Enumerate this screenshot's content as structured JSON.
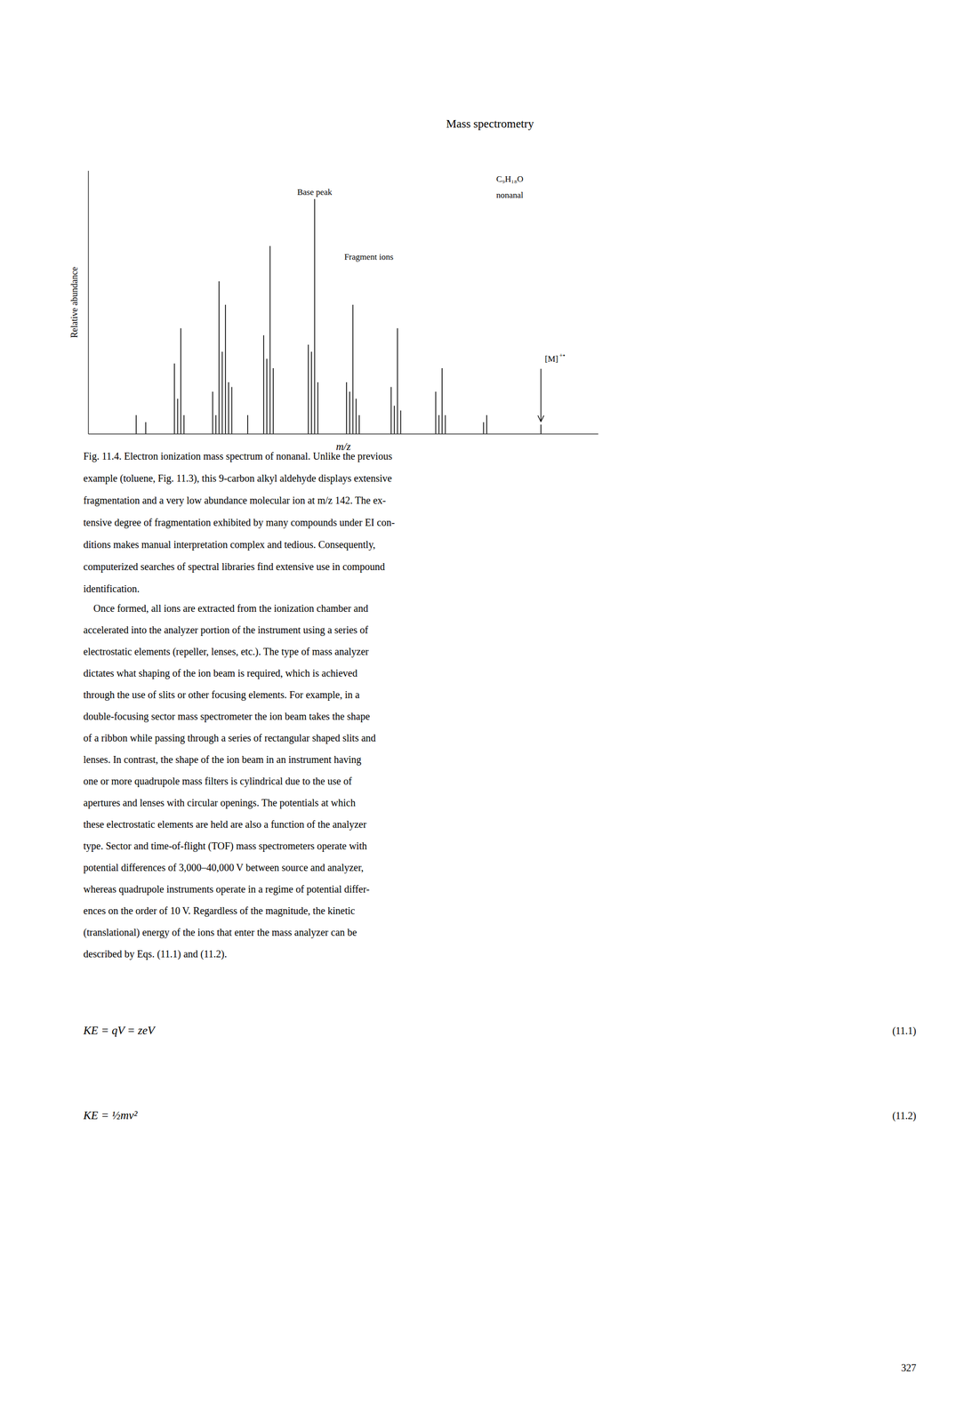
{
  "chart_data": {
    "type": "bar",
    "x_label": "m/z",
    "y_label": "Relative abundance",
    "x": [
      15,
      18,
      27,
      28,
      29,
      30,
      39,
      40,
      41,
      42,
      43,
      44,
      45,
      50,
      55,
      56,
      57,
      58,
      69,
      70,
      71,
      72,
      81,
      82,
      83,
      84,
      85,
      95,
      96,
      97,
      98,
      109,
      110,
      111,
      112,
      124,
      125,
      142
    ],
    "values": [
      8,
      5,
      30,
      15,
      45,
      8,
      18,
      8,
      65,
      35,
      55,
      22,
      20,
      8,
      42,
      32,
      80,
      28,
      38,
      35,
      100,
      22,
      22,
      18,
      55,
      15,
      8,
      20,
      12,
      45,
      10,
      18,
      8,
      28,
      8,
      5,
      8,
      4
    ],
    "color": "#000000",
    "xlim": [
      0,
      160
    ],
    "ylim": [
      0,
      112
    ],
    "tick_labels": false,
    "annotations": {
      "base_peak_label": "Base peak",
      "fragment_ions_label": "Fragment ions",
      "compound_formula": "C₉H₁₈O",
      "compound_name": "nonanal",
      "mol_ion_label": "[M]",
      "mol_ion_super": "+•"
    }
  },
  "page_title": "Mass spectrometry",
  "caption": [
    "Fig. 11.4. Electron ionization mass spectrum of nonanal. Unlike the previous",
    "example (toluene, Fig. 11.3), this 9-carbon alkyl aldehyde displays extensive",
    "fragmentation and a very low abundance molecular ion at m/z 142. The ex-",
    "tensive degree of fragmentation exhibited by many compounds under EI con-",
    "ditions makes manual interpretation complex and tedious. Consequently,",
    "computerized searches of spectral libraries find extensive use in compound",
    "identification."
  ],
  "body": [
    "    Once formed, all ions are extracted from the ionization chamber and",
    "accelerated into the analyzer portion of the instrument using a series of",
    "electrostatic elements (repeller, lenses, etc.). The type of mass analyzer",
    "dictates what shaping of the ion beam is required, which is achieved",
    "through the use of slits or other focusing elements. For example, in a",
    "double-focusing sector mass spectrometer the ion beam takes the shape",
    "of a ribbon while passing through a series of rectangular shaped slits and",
    "lenses. In contrast, the shape of the ion beam in an instrument having",
    "one or more quadrupole mass filters is cylindrical due to the use of",
    "apertures and lenses with circular openings. The potentials at which",
    "these electrostatic elements are held are also a function of the analyzer",
    "type. Sector and time-of-flight (TOF) mass spectrometers operate with",
    "potential differences of 3,000–40,000 V between source and analyzer,",
    "whereas quadrupole instruments operate in a regime of potential differ-",
    "ences on the order of 10 V. Regardless of the magnitude, the kinetic",
    "(translational) energy of the ions that enter the mass analyzer can be",
    "described by Eqs. (11.1) and (11.2)."
  ],
  "equations": [
    {
      "text": "KE = qV = zeV",
      "label": "(11.1)"
    },
    {
      "text": "KE = ½mv²",
      "label": "(11.2)"
    }
  ],
  "page_number": "327",
  "background_color": "#ffffff",
  "text_color": "#000000"
}
